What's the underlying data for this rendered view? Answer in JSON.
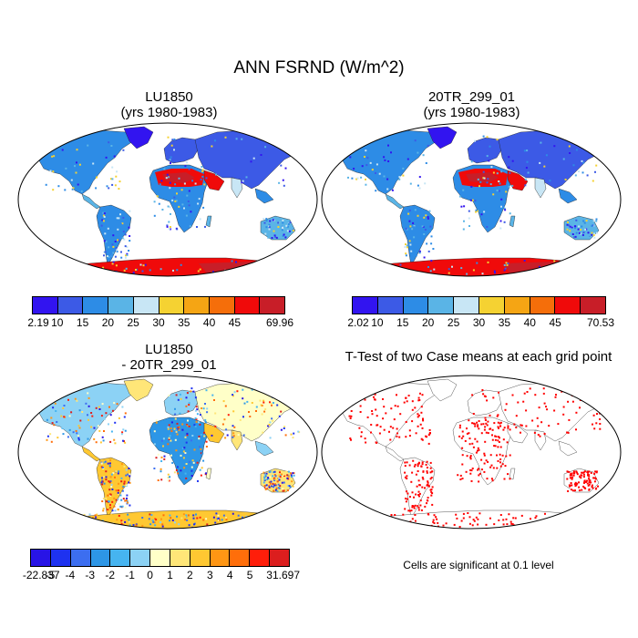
{
  "title": "ANN FSRND (W/m^2)",
  "panels": [
    {
      "title": "LU1850\n(yrs 1980-1983)"
    },
    {
      "title": "20TR_299_01\n(yrs 1980-1983)"
    },
    {
      "title": "LU1850\n- 20TR_299_01"
    },
    {
      "title": "T-Test of two Case means at each grid point"
    }
  ],
  "colorbars": {
    "abs1": {
      "labels": [
        "2.19",
        "10",
        "15",
        "20",
        "25",
        "30",
        "35",
        "40",
        "45",
        "69.96"
      ],
      "colors": [
        "#3214f0",
        "#3c5ae6",
        "#2d8ce6",
        "#5ab4e6",
        "#c8e6f5",
        "#f5d232",
        "#f5a514",
        "#f56e0a",
        "#f00a0a",
        "#c81e28"
      ]
    },
    "abs2": {
      "labels": [
        "2.02",
        "10",
        "15",
        "20",
        "25",
        "30",
        "35",
        "40",
        "45",
        "70.53"
      ],
      "colors": [
        "#3214f0",
        "#3c5ae6",
        "#2d8ce6",
        "#5ab4e6",
        "#c8e6f5",
        "#f5d232",
        "#f5a514",
        "#f56e0a",
        "#f00a0a",
        "#c81e28"
      ]
    },
    "diff": {
      "labels": [
        "-22.837",
        "-5",
        "-4",
        "-3",
        "-2",
        "-1",
        "0",
        "1",
        "2",
        "3",
        "4",
        "5",
        "31.697"
      ],
      "colors": [
        "#2814e6",
        "#1e32f0",
        "#3c6ef0",
        "#2d96e6",
        "#46b4f0",
        "#8cd2f5",
        "#ffffc8",
        "#ffe678",
        "#ffc832",
        "#ff9614",
        "#ff6e0a",
        "#ff1e0a",
        "#dc1e1e"
      ]
    }
  },
  "note": "Cells are significant at 0.1 level"
}
